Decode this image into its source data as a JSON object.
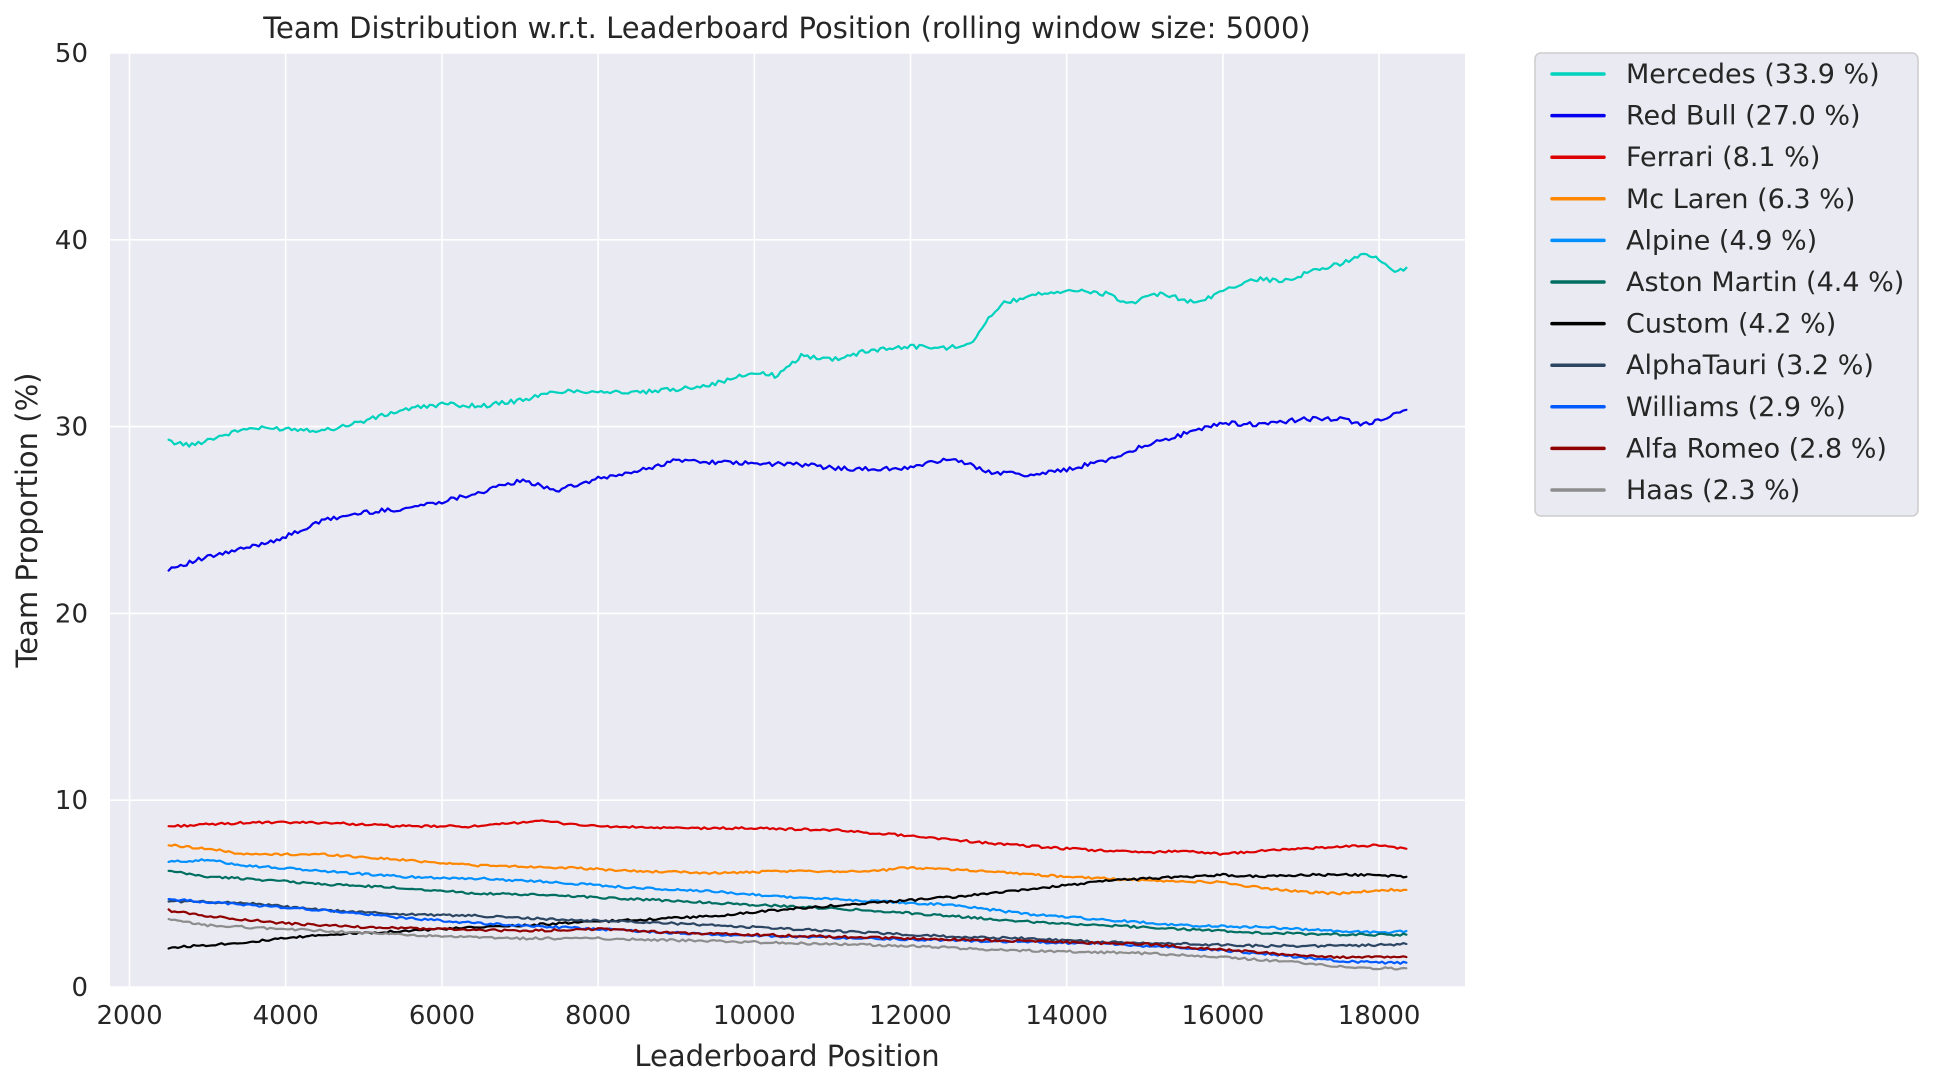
{
  "chart_data": {
    "type": "line",
    "title": "Team Distribution w.r.t. Leaderboard Position (rolling window size: 5000)",
    "xlabel": "Leaderboard Position",
    "ylabel": "Team Proportion (%)",
    "xlim": [
      1750,
      19100
    ],
    "ylim": [
      0,
      50
    ],
    "xticks": [
      2000,
      4000,
      6000,
      8000,
      10000,
      12000,
      14000,
      16000,
      18000
    ],
    "yticks": [
      0,
      10,
      20,
      30,
      40,
      50
    ],
    "grid": true,
    "legend_position": "outside-right-top",
    "background": "#eaeaf2",
    "series": [
      {
        "name": "Mercedes (33.9 %)",
        "color": "#00d2be",
        "points": [
          [
            2500,
            29.2
          ],
          [
            2800,
            29.0
          ],
          [
            3000,
            29.3
          ],
          [
            3500,
            29.9
          ],
          [
            4000,
            29.9
          ],
          [
            4500,
            29.8
          ],
          [
            5000,
            30.3
          ],
          [
            5500,
            30.9
          ],
          [
            6000,
            31.2
          ],
          [
            6500,
            31.1
          ],
          [
            7000,
            31.4
          ],
          [
            7500,
            31.9
          ],
          [
            8000,
            31.9
          ],
          [
            8500,
            31.8
          ],
          [
            9000,
            32.0
          ],
          [
            9500,
            32.3
          ],
          [
            10000,
            32.9
          ],
          [
            10300,
            32.7
          ],
          [
            10600,
            33.8
          ],
          [
            11000,
            33.6
          ],
          [
            11500,
            34.1
          ],
          [
            12000,
            34.3
          ],
          [
            12500,
            34.2
          ],
          [
            12800,
            34.6
          ],
          [
            13000,
            35.8
          ],
          [
            13200,
            36.6
          ],
          [
            13600,
            37.1
          ],
          [
            14000,
            37.3
          ],
          [
            14500,
            37.1
          ],
          [
            14800,
            36.6
          ],
          [
            15200,
            37.1
          ],
          [
            15700,
            36.6
          ],
          [
            16000,
            37.3
          ],
          [
            16400,
            37.9
          ],
          [
            16800,
            37.8
          ],
          [
            17200,
            38.4
          ],
          [
            17500,
            38.7
          ],
          [
            17800,
            39.3
          ],
          [
            18000,
            38.9
          ],
          [
            18200,
            38.3
          ],
          [
            18350,
            38.5
          ]
        ]
      },
      {
        "name": "Red Bull (27.0 %)",
        "color": "#0600ef",
        "points": [
          [
            2500,
            22.4
          ],
          [
            3000,
            23.0
          ],
          [
            3500,
            23.5
          ],
          [
            4000,
            24.1
          ],
          [
            4500,
            25.0
          ],
          [
            5000,
            25.4
          ],
          [
            5500,
            25.6
          ],
          [
            6000,
            26.0
          ],
          [
            6500,
            26.5
          ],
          [
            7000,
            27.1
          ],
          [
            7500,
            26.6
          ],
          [
            8000,
            27.2
          ],
          [
            8500,
            27.6
          ],
          [
            9000,
            28.2
          ],
          [
            9500,
            28.1
          ],
          [
            10000,
            28.0
          ],
          [
            10500,
            28.0
          ],
          [
            11000,
            27.8
          ],
          [
            11500,
            27.7
          ],
          [
            12000,
            27.8
          ],
          [
            12500,
            28.3
          ],
          [
            13000,
            27.6
          ],
          [
            13500,
            27.4
          ],
          [
            14000,
            27.7
          ],
          [
            14500,
            28.2
          ],
          [
            15000,
            29.0
          ],
          [
            15500,
            29.6
          ],
          [
            16000,
            30.2
          ],
          [
            16500,
            30.1
          ],
          [
            17000,
            30.4
          ],
          [
            17500,
            30.4
          ],
          [
            17800,
            30.1
          ],
          [
            18100,
            30.5
          ],
          [
            18350,
            30.9
          ]
        ]
      },
      {
        "name": "Ferrari (8.1 %)",
        "color": "#dc0000",
        "points": [
          [
            2500,
            8.6
          ],
          [
            3500,
            8.8
          ],
          [
            4500,
            8.8
          ],
          [
            5500,
            8.6
          ],
          [
            6500,
            8.6
          ],
          [
            7200,
            8.9
          ],
          [
            8000,
            8.6
          ],
          [
            9000,
            8.5
          ],
          [
            10000,
            8.5
          ],
          [
            11000,
            8.4
          ],
          [
            12000,
            8.1
          ],
          [
            13000,
            7.7
          ],
          [
            14000,
            7.4
          ],
          [
            15000,
            7.2
          ],
          [
            15500,
            7.3
          ],
          [
            16000,
            7.1
          ],
          [
            16500,
            7.3
          ],
          [
            17000,
            7.4
          ],
          [
            17500,
            7.5
          ],
          [
            18000,
            7.6
          ],
          [
            18350,
            7.4
          ]
        ]
      },
      {
        "name": "Mc Laren (6.3 %)",
        "color": "#ff8700",
        "points": [
          [
            2500,
            7.6
          ],
          [
            3000,
            7.4
          ],
          [
            3500,
            7.1
          ],
          [
            4500,
            7.1
          ],
          [
            5500,
            6.8
          ],
          [
            6500,
            6.5
          ],
          [
            7500,
            6.4
          ],
          [
            8500,
            6.2
          ],
          [
            9500,
            6.1
          ],
          [
            10500,
            6.2
          ],
          [
            11500,
            6.2
          ],
          [
            12000,
            6.4
          ],
          [
            13000,
            6.2
          ],
          [
            14000,
            5.9
          ],
          [
            15000,
            5.7
          ],
          [
            16000,
            5.6
          ],
          [
            16500,
            5.3
          ],
          [
            17000,
            5.1
          ],
          [
            17500,
            5.0
          ],
          [
            18000,
            5.2
          ],
          [
            18350,
            5.2
          ]
        ]
      },
      {
        "name": "Alpine (4.9 %)",
        "color": "#0090ff",
        "points": [
          [
            2500,
            6.7
          ],
          [
            3000,
            6.8
          ],
          [
            3500,
            6.5
          ],
          [
            4500,
            6.2
          ],
          [
            5500,
            5.9
          ],
          [
            6500,
            5.8
          ],
          [
            7500,
            5.6
          ],
          [
            8500,
            5.3
          ],
          [
            9500,
            5.1
          ],
          [
            10500,
            4.8
          ],
          [
            11500,
            4.6
          ],
          [
            12500,
            4.4
          ],
          [
            13500,
            3.9
          ],
          [
            14500,
            3.6
          ],
          [
            15500,
            3.3
          ],
          [
            16500,
            3.2
          ],
          [
            17500,
            3.0
          ],
          [
            18000,
            2.9
          ],
          [
            18350,
            3.0
          ]
        ]
      },
      {
        "name": "Aston Martin (4.4 %)",
        "color": "#006f62",
        "points": [
          [
            2500,
            6.2
          ],
          [
            3000,
            5.9
          ],
          [
            3500,
            5.8
          ],
          [
            4500,
            5.5
          ],
          [
            5500,
            5.3
          ],
          [
            6500,
            5.0
          ],
          [
            7500,
            4.9
          ],
          [
            8500,
            4.7
          ],
          [
            9500,
            4.5
          ],
          [
            10500,
            4.3
          ],
          [
            11500,
            4.1
          ],
          [
            12500,
            3.8
          ],
          [
            13500,
            3.5
          ],
          [
            14500,
            3.3
          ],
          [
            15500,
            3.1
          ],
          [
            16500,
            2.9
          ],
          [
            17500,
            2.8
          ],
          [
            18350,
            2.8
          ]
        ]
      },
      {
        "name": "Custom (4.2 %)",
        "color": "#000000",
        "points": [
          [
            2500,
            2.1
          ],
          [
            3500,
            2.4
          ],
          [
            4500,
            2.8
          ],
          [
            5500,
            3.0
          ],
          [
            6500,
            3.2
          ],
          [
            7500,
            3.4
          ],
          [
            8500,
            3.6
          ],
          [
            9500,
            3.8
          ],
          [
            10500,
            4.2
          ],
          [
            11500,
            4.5
          ],
          [
            12500,
            4.8
          ],
          [
            13500,
            5.2
          ],
          [
            14500,
            5.7
          ],
          [
            15500,
            5.9
          ],
          [
            16000,
            6.0
          ],
          [
            16500,
            5.9
          ],
          [
            17000,
            6.0
          ],
          [
            17500,
            6.0
          ],
          [
            18000,
            6.0
          ],
          [
            18350,
            5.9
          ]
        ]
      },
      {
        "name": "AlphaTauri (3.2 %)",
        "color": "#2b4562",
        "points": [
          [
            2500,
            4.6
          ],
          [
            3500,
            4.5
          ],
          [
            4500,
            4.1
          ],
          [
            5500,
            3.9
          ],
          [
            6500,
            3.8
          ],
          [
            7500,
            3.6
          ],
          [
            8500,
            3.5
          ],
          [
            9500,
            3.3
          ],
          [
            10500,
            3.1
          ],
          [
            11500,
            2.9
          ],
          [
            12500,
            2.7
          ],
          [
            13500,
            2.6
          ],
          [
            14500,
            2.4
          ],
          [
            15500,
            2.3
          ],
          [
            16500,
            2.2
          ],
          [
            17500,
            2.2
          ],
          [
            18350,
            2.3
          ]
        ]
      },
      {
        "name": "Williams (2.9 %)",
        "color": "#005aff",
        "points": [
          [
            2500,
            4.7
          ],
          [
            3500,
            4.4
          ],
          [
            4500,
            4.1
          ],
          [
            5500,
            3.7
          ],
          [
            6500,
            3.4
          ],
          [
            7500,
            3.2
          ],
          [
            8500,
            3.0
          ],
          [
            9500,
            2.8
          ],
          [
            10500,
            2.7
          ],
          [
            11500,
            2.6
          ],
          [
            12500,
            2.5
          ],
          [
            13500,
            2.4
          ],
          [
            14500,
            2.3
          ],
          [
            15500,
            2.1
          ],
          [
            16500,
            1.8
          ],
          [
            17500,
            1.4
          ],
          [
            18000,
            1.3
          ],
          [
            18350,
            1.3
          ]
        ]
      },
      {
        "name": "Alfa Romeo (2.8 %)",
        "color": "#900000",
        "points": [
          [
            2500,
            4.1
          ],
          [
            3000,
            3.8
          ],
          [
            4000,
            3.4
          ],
          [
            5000,
            3.2
          ],
          [
            6000,
            3.1
          ],
          [
            7000,
            3.0
          ],
          [
            8000,
            3.1
          ],
          [
            9000,
            2.9
          ],
          [
            10000,
            2.8
          ],
          [
            11000,
            2.7
          ],
          [
            12000,
            2.6
          ],
          [
            13000,
            2.5
          ],
          [
            14000,
            2.4
          ],
          [
            15000,
            2.3
          ],
          [
            16000,
            2.0
          ],
          [
            17000,
            1.7
          ],
          [
            17500,
            1.6
          ],
          [
            18350,
            1.6
          ]
        ]
      },
      {
        "name": "Haas (2.3 %)",
        "color": "#8d8d8d",
        "points": [
          [
            2500,
            3.6
          ],
          [
            3000,
            3.3
          ],
          [
            4000,
            3.1
          ],
          [
            5000,
            2.9
          ],
          [
            6000,
            2.7
          ],
          [
            7000,
            2.6
          ],
          [
            8000,
            2.6
          ],
          [
            9000,
            2.5
          ],
          [
            10000,
            2.4
          ],
          [
            11000,
            2.3
          ],
          [
            12000,
            2.2
          ],
          [
            13000,
            2.0
          ],
          [
            14000,
            1.9
          ],
          [
            15000,
            1.8
          ],
          [
            16000,
            1.6
          ],
          [
            17000,
            1.3
          ],
          [
            17500,
            1.1
          ],
          [
            18000,
            1.0
          ],
          [
            18350,
            1.0
          ]
        ]
      }
    ]
  }
}
